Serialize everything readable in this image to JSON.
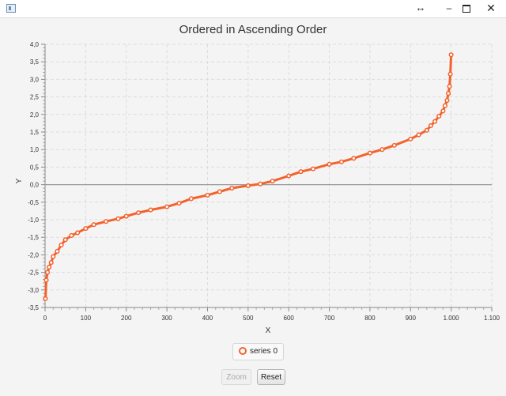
{
  "window": {
    "resize_glyph": "↔",
    "minimize_glyph": "–",
    "close_glyph": "✕"
  },
  "chart_data": {
    "type": "line",
    "title": "Ordered in Ascending Order",
    "xlabel": "X",
    "ylabel": "Y",
    "xlim": [
      0,
      1100
    ],
    "ylim": [
      -3.5,
      4.0
    ],
    "x_ticks": [
      "0",
      "100",
      "200",
      "300",
      "400",
      "500",
      "600",
      "700",
      "800",
      "900",
      "1.000",
      "1.100"
    ],
    "y_ticks": [
      "-3,5",
      "-3,0",
      "-2,5",
      "-2,0",
      "-1,5",
      "-1,0",
      "-0,5",
      "0,0",
      "0,5",
      "1,0",
      "1,5",
      "2,0",
      "2,5",
      "3,0",
      "3,5",
      "4,0"
    ],
    "grid": true,
    "legend_position": "bottom",
    "series": [
      {
        "name": "series 0",
        "color": "#f3622d",
        "x": [
          1,
          3,
          6,
          10,
          15,
          20,
          30,
          40,
          50,
          65,
          80,
          100,
          120,
          150,
          180,
          200,
          230,
          260,
          300,
          330,
          360,
          400,
          430,
          460,
          500,
          530,
          560,
          600,
          630,
          660,
          700,
          730,
          760,
          800,
          830,
          860,
          900,
          920,
          940,
          950,
          960,
          970,
          980,
          985,
          990,
          993,
          996,
          998,
          1000
        ],
        "values": [
          -3.25,
          -2.72,
          -2.5,
          -2.35,
          -2.22,
          -2.05,
          -1.9,
          -1.72,
          -1.57,
          -1.45,
          -1.37,
          -1.25,
          -1.14,
          -1.05,
          -0.97,
          -0.9,
          -0.8,
          -0.72,
          -0.63,
          -0.53,
          -0.4,
          -0.3,
          -0.2,
          -0.1,
          -0.03,
          0.02,
          0.1,
          0.25,
          0.37,
          0.45,
          0.58,
          0.65,
          0.75,
          0.9,
          1.0,
          1.12,
          1.3,
          1.42,
          1.55,
          1.68,
          1.8,
          1.95,
          2.1,
          2.25,
          2.4,
          2.6,
          2.8,
          3.15,
          3.7
        ]
      }
    ]
  },
  "legend": {
    "label": "series 0"
  },
  "buttons": {
    "zoom": "Zoom",
    "reset": "Reset"
  }
}
